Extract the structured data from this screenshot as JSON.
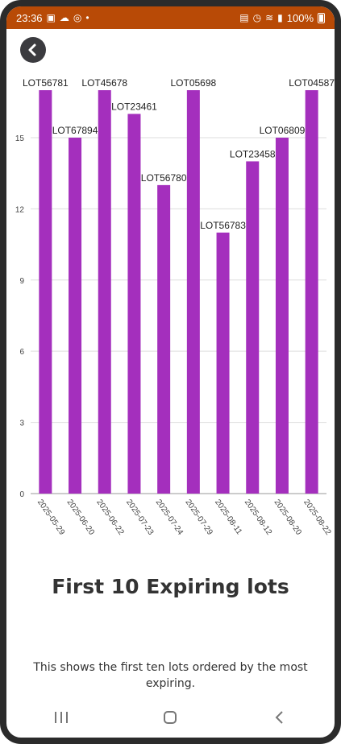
{
  "status_bar": {
    "time": "23:36",
    "battery": "100%",
    "bg_color": "#b84a06"
  },
  "back_button_icon": "chevron-left-icon",
  "chart_data": {
    "type": "bar",
    "categories": [
      "2025-05-29",
      "2025-06-20",
      "2025-06-22",
      "2025-07-23",
      "2025-07-24",
      "2025-07-29",
      "2025-08-11",
      "2025-08-12",
      "2025-08-20",
      "2025-08-22"
    ],
    "values": [
      17,
      15,
      17,
      16,
      13,
      17,
      11,
      14,
      15,
      17
    ],
    "data_labels": [
      "LOT56781",
      "LOT67894",
      "LOT45678",
      "LOT23461",
      "LOT56780",
      "LOT05698",
      "LOT56783",
      "LOT23458",
      "LOT06809",
      "LOT04587"
    ],
    "ylim": [
      0,
      17
    ],
    "yticks": [
      0,
      3,
      6,
      9,
      12,
      15
    ],
    "grid": true,
    "bar_color": "#a42fbd"
  },
  "page": {
    "title": "First 10 Expiring lots",
    "description": "This shows the first ten lots ordered by the most expiring."
  },
  "nav": {
    "icons": [
      "recent-apps-icon",
      "home-icon",
      "back-icon"
    ]
  }
}
